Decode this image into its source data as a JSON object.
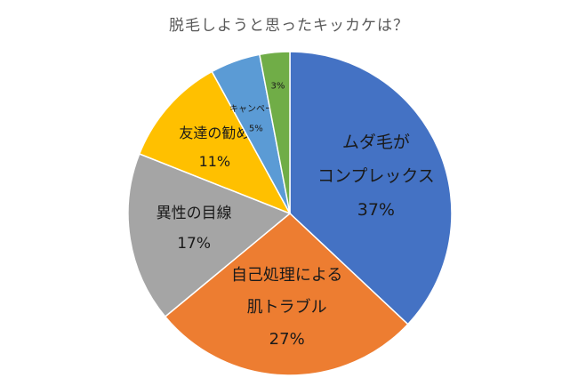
{
  "chart_data": {
    "type": "pie",
    "title": "脱毛しようと思ったキッカケは？",
    "slices": [
      {
        "label_lines": [
          "ムダ毛が",
          "コンプレックス"
        ],
        "value": 37,
        "value_label": "37%",
        "color": "#4472c4"
      },
      {
        "label_lines": [
          "自己処理による",
          "肌トラブル"
        ],
        "value": 27,
        "value_label": "27%",
        "color": "#ed7d31"
      },
      {
        "label_lines": [
          "異性の目線"
        ],
        "value": 17,
        "value_label": "17%",
        "color": "#a5a5a5"
      },
      {
        "label_lines": [
          "友達の勧め"
        ],
        "value": 11,
        "value_label": "11%",
        "color": "#ffc000"
      },
      {
        "label_lines": [
          "キャンペーン"
        ],
        "value": 5,
        "value_label": "5%",
        "color": "#5b9bd5"
      },
      {
        "label_lines": [],
        "value": 3,
        "value_label": "3%",
        "color": "#70ad47"
      }
    ]
  }
}
